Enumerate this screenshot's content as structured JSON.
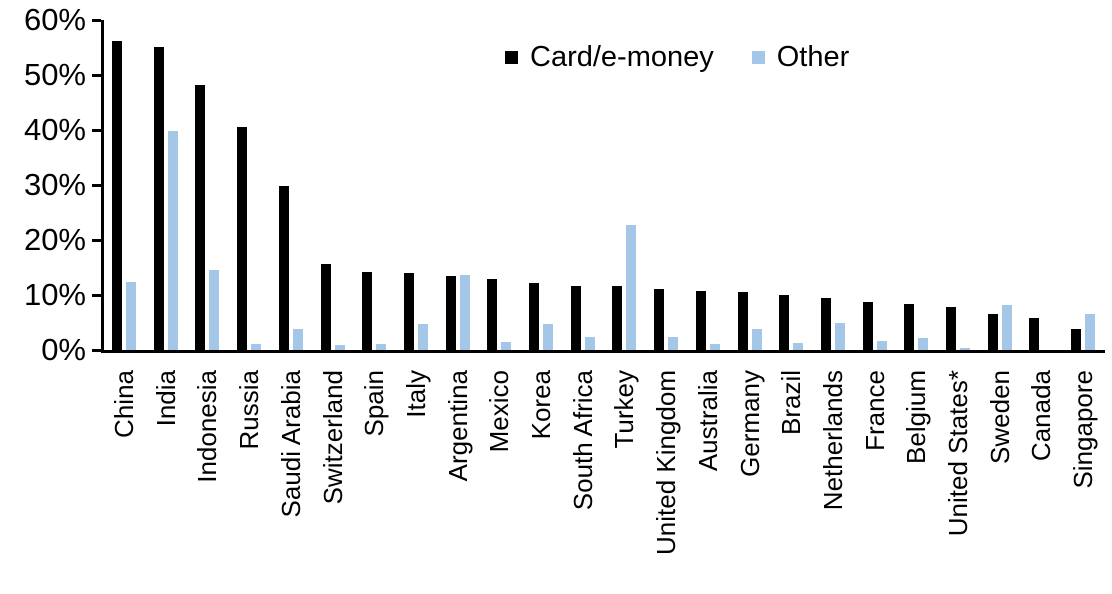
{
  "chart_data": {
    "type": "bar",
    "title": "",
    "xlabel": "",
    "ylabel": "",
    "ylim": [
      0,
      60
    ],
    "grid": false,
    "legend_position": "top-center",
    "yticks": [
      {
        "label": "60%",
        "value": 60
      },
      {
        "label": "50%",
        "value": 50
      },
      {
        "label": "40%",
        "value": 40
      },
      {
        "label": "30%",
        "value": 30
      },
      {
        "label": "20%",
        "value": 20
      },
      {
        "label": "10%",
        "value": 10
      },
      {
        "label": "0%",
        "value": 0
      }
    ],
    "categories": [
      "China",
      "India",
      "Indonesia",
      "Russia",
      "Saudi Arabia",
      "Switzerland",
      "Spain",
      "Italy",
      "Argentina",
      "Mexico",
      "Korea",
      "South Africa",
      "Turkey",
      "United Kingdom",
      "Australia",
      "Germany",
      "Brazil",
      "Netherlands",
      "France",
      "Belgium",
      "United States*",
      "Sweden",
      "Canada",
      "Singapore"
    ],
    "series": [
      {
        "name": "Card/e-money",
        "color": "#000000",
        "values": [
          56.2,
          55.1,
          48.2,
          40.5,
          29.9,
          15.7,
          14.2,
          14.0,
          13.4,
          12.9,
          12.2,
          11.7,
          11.6,
          11.0,
          10.8,
          10.6,
          10.0,
          9.4,
          8.7,
          8.3,
          7.9,
          6.6,
          5.9,
          3.9
        ]
      },
      {
        "name": "Other",
        "color": "#A4C7E8",
        "values": [
          12.3,
          39.8,
          14.6,
          1.1,
          3.9,
          0.9,
          1.1,
          4.7,
          13.7,
          1.4,
          4.7,
          2.4,
          22.7,
          2.4,
          1.1,
          3.9,
          1.3,
          4.9,
          1.6,
          2.2,
          0.4,
          8.2,
          0.0,
          6.6
        ]
      }
    ]
  }
}
